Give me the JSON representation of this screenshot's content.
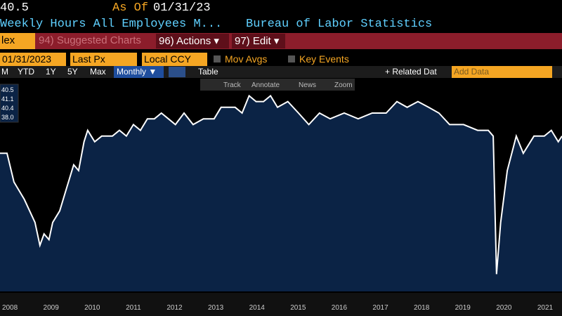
{
  "ui": {
    "header": {
      "last": "40.5",
      "as_of_label": "As Of",
      "as_of_date": "01/31/23",
      "security": "Weekly Hours All Employees M...",
      "source": "Bureau of Labor Statistics"
    },
    "menu": {
      "index": "lex",
      "suggested": "94) Suggested Charts",
      "actions": "96) Actions ▾",
      "edit": "97) Edit ▾"
    },
    "controls": {
      "date": "01/31/2023",
      "field": "Last Px",
      "currency": "Local CCY",
      "mov_avgs": "Mov Avgs",
      "key_events": "Key Events"
    },
    "periods": [
      "M",
      "YTD",
      "1Y",
      "5Y",
      "Max"
    ],
    "frequency": "Monthly ▼",
    "table": "Table",
    "related": "+ Related Dat",
    "add_data": "Add Data",
    "tools": [
      "Track",
      "Annotate",
      "News",
      "Zoom"
    ]
  },
  "chart_data": {
    "type": "area",
    "color": "#ffffff",
    "fill": "#0b2345",
    "stats": [
      {
        "value": 40.5,
        "label": "40.5"
      },
      {
        "value": 41.1,
        "label": "41.1"
      },
      {
        "value": 40.4,
        "label": "40.4"
      },
      {
        "value": 38.0,
        "label": "38.0"
      }
    ],
    "x": [
      2008.26,
      2008.43,
      2008.6,
      2008.85,
      2009.11,
      2009.23,
      2009.33,
      2009.45,
      2009.54,
      2009.71,
      2009.88,
      2010.05,
      2010.17,
      2010.3,
      2010.39,
      2010.56,
      2010.73,
      2010.99,
      2011.16,
      2011.33,
      2011.5,
      2011.67,
      2011.84,
      2012.01,
      2012.18,
      2012.35,
      2012.52,
      2012.73,
      2012.95,
      2013.2,
      2013.46,
      2013.63,
      2013.97,
      2014.14,
      2014.31,
      2014.48,
      2014.66,
      2014.83,
      2015.0,
      2015.25,
      2015.51,
      2015.76,
      2016.02,
      2016.28,
      2016.62,
      2016.96,
      2017.3,
      2017.64,
      2017.9,
      2018.15,
      2018.41,
      2018.67,
      2018.92,
      2019.18,
      2019.52,
      2019.86,
      2020.12,
      2020.24,
      2020.32,
      2020.42,
      2020.58,
      2020.8,
      2020.97,
      2021.23,
      2021.48,
      2021.65,
      2021.82,
      2021.91
    ],
    "values": [
      40.1,
      40.1,
      39.6,
      39.3,
      38.9,
      38.5,
      38.7,
      38.6,
      38.9,
      39.1,
      39.5,
      39.9,
      39.8,
      40.3,
      40.5,
      40.3,
      40.4,
      40.4,
      40.5,
      40.4,
      40.6,
      40.5,
      40.7,
      40.7,
      40.8,
      40.7,
      40.6,
      40.8,
      40.6,
      40.7,
      40.7,
      40.9,
      40.9,
      40.8,
      41.1,
      41.0,
      41.0,
      41.1,
      40.9,
      41.0,
      40.8,
      40.6,
      40.8,
      40.7,
      40.8,
      40.7,
      40.8,
      40.8,
      41.0,
      40.9,
      41.0,
      40.9,
      40.8,
      40.6,
      40.6,
      40.5,
      40.5,
      40.4,
      38.0,
      38.9,
      39.8,
      40.4,
      40.1,
      40.4,
      40.4,
      40.5,
      40.3,
      40.4
    ],
    "xlim": [
      2008.26,
      2021.91
    ],
    "ylim": [
      37.7,
      41.3
    ],
    "xticks": [
      {
        "value": 2008.5,
        "label": "2008"
      },
      {
        "value": 2009.5,
        "label": "2009"
      },
      {
        "value": 2010.5,
        "label": "2010"
      },
      {
        "value": 2011.5,
        "label": "2011"
      },
      {
        "value": 2012.5,
        "label": "2012"
      },
      {
        "value": 2013.5,
        "label": "2013"
      },
      {
        "value": 2014.5,
        "label": "2014"
      },
      {
        "value": 2015.5,
        "label": "2015"
      },
      {
        "value": 2016.5,
        "label": "2016"
      },
      {
        "value": 2017.5,
        "label": "2017"
      },
      {
        "value": 2018.5,
        "label": "2018"
      },
      {
        "value": 2019.5,
        "label": "2019"
      },
      {
        "value": 2020.5,
        "label": "2020"
      },
      {
        "value": 2021.5,
        "label": "2021"
      }
    ]
  }
}
